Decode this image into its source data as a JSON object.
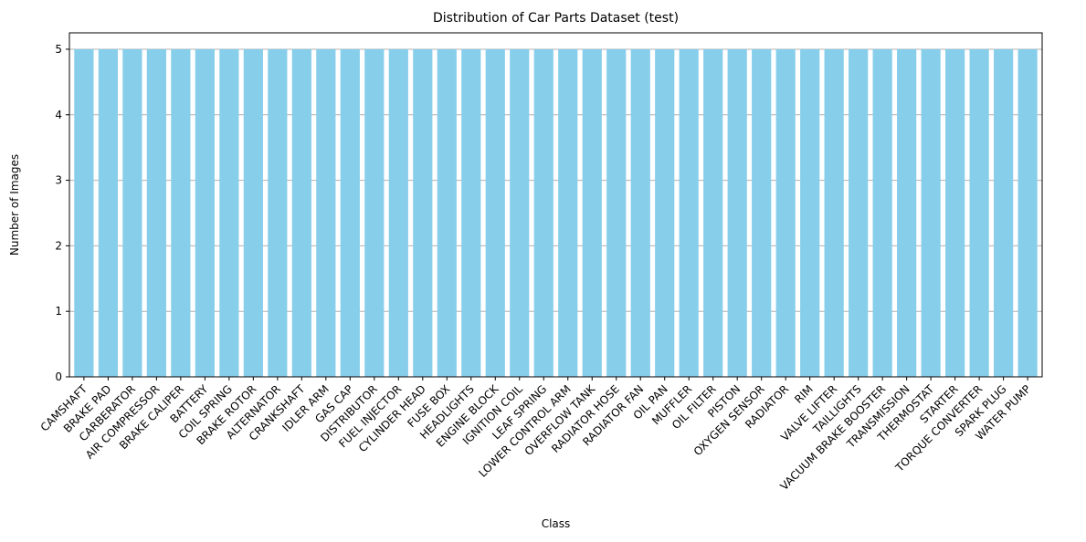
{
  "chart_data": {
    "type": "bar",
    "title": "Distribution of Car Parts Dataset (test)",
    "xlabel": "Class",
    "ylabel": "Number of Images",
    "categories": [
      "CAMSHAFT",
      "BRAKE PAD",
      "CARBERATOR",
      "AIR COMPRESSOR",
      "BRAKE CALIPER",
      "BATTERY",
      "COIL SPRING",
      "BRAKE ROTOR",
      "ALTERNATOR",
      "CRANKSHAFT",
      "IDLER ARM",
      "GAS CAP",
      "DISTRIBUTOR",
      "FUEL INJECTOR",
      "CYLINDER HEAD",
      "FUSE BOX",
      "HEADLIGHTS",
      "ENGINE BLOCK",
      "IGNITION COIL",
      "LEAF SPRING",
      "LOWER CONTROL ARM",
      "OVERFLOW TANK",
      "RADIATOR HOSE",
      "RADIATOR FAN",
      "OIL PAN",
      "MUFFLER",
      "OIL FILTER",
      "PISTON",
      "OXYGEN SENSOR",
      "RADIATOR",
      "RIM",
      "VALVE LIFTER",
      "TAILLIGHTS",
      "VACUUM BRAKE BOOSTER",
      "TRANSMISSION",
      "THERMOSTAT",
      "STARTER",
      "TORQUE CONVERTER",
      "SPARK PLUG",
      "WATER PUMP"
    ],
    "values": [
      5,
      5,
      5,
      5,
      5,
      5,
      5,
      5,
      5,
      5,
      5,
      5,
      5,
      5,
      5,
      5,
      5,
      5,
      5,
      5,
      5,
      5,
      5,
      5,
      5,
      5,
      5,
      5,
      5,
      5,
      5,
      5,
      5,
      5,
      5,
      5,
      5,
      5,
      5,
      5
    ],
    "ylim": [
      0,
      5.25
    ],
    "yticks": [
      0,
      1,
      2,
      3,
      4,
      5
    ],
    "grid": "y-axis only",
    "bar_color": "#87ceeb",
    "grid_color": "#b0b0b0"
  }
}
